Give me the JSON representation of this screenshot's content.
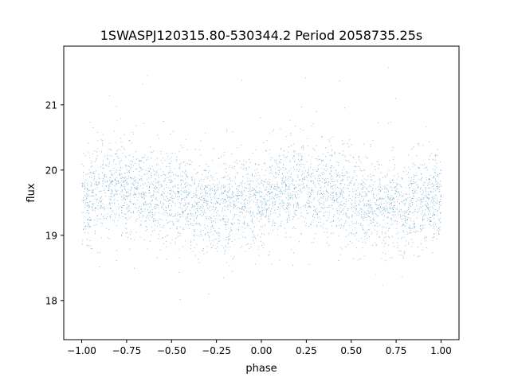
{
  "chart_data": {
    "type": "scatter",
    "title": "1SWASPJ120315.80-530344.2 Period 2058735.25s",
    "xlabel": "phase",
    "ylabel": "flux",
    "xlim": [
      -1.1,
      1.1
    ],
    "ylim": [
      17.4,
      21.9
    ],
    "x_ticks": [
      -1.0,
      -0.75,
      -0.5,
      -0.25,
      0.0,
      0.25,
      0.5,
      0.75,
      1.0
    ],
    "x_tick_labels": [
      "−1.00",
      "−0.75",
      "−0.50",
      "−0.25",
      "0.00",
      "0.25",
      "0.50",
      "0.75",
      "1.00"
    ],
    "y_ticks": [
      18,
      19,
      20,
      21
    ],
    "y_tick_labels": [
      "18",
      "19",
      "20",
      "21"
    ],
    "grid": false,
    "legend": "none",
    "point_color": "#1f77b4",
    "series": [
      {
        "phase_folded": true,
        "approx_points": 24000,
        "x_range": [
          -1.0,
          1.0
        ],
        "mean_flux_profile": {
          "phase": [
            -1.0,
            -0.9,
            -0.8,
            -0.7,
            -0.6,
            -0.5,
            -0.4,
            -0.3,
            -0.2,
            -0.1,
            0.0,
            0.1,
            0.2,
            0.3,
            0.4,
            0.5,
            0.6,
            0.7,
            0.8,
            0.9,
            1.0
          ],
          "flux": [
            19.55,
            19.65,
            19.75,
            19.7,
            19.65,
            19.6,
            19.5,
            19.45,
            19.45,
            19.5,
            19.55,
            19.65,
            19.75,
            19.7,
            19.65,
            19.6,
            19.5,
            19.45,
            19.45,
            19.5,
            19.55
          ]
        },
        "core_spread": 0.35,
        "flux_extent": [
          17.6,
          21.7
        ]
      }
    ]
  }
}
